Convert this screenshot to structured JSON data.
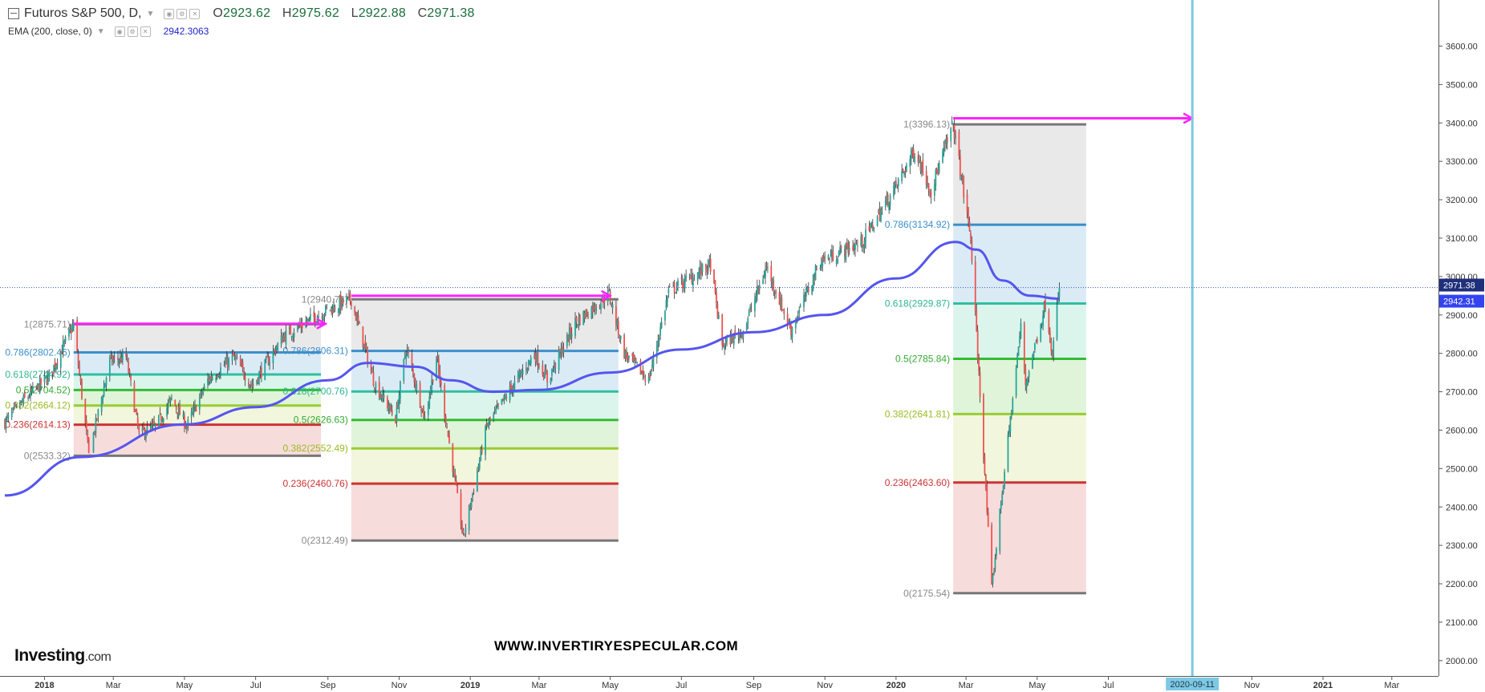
{
  "header": {
    "symbol": "Futuros S&P 500, D,",
    "ohlc": {
      "o_label": "O",
      "o": "2923.62",
      "h_label": "H",
      "h": "2975.62",
      "l_label": "L",
      "l": "2922.88",
      "c_label": "C",
      "c": "2971.38"
    },
    "ema_label": "EMA (200, close, 0)",
    "ema_value": "2942.3063"
  },
  "branding": {
    "logo_main": "Investing",
    "logo_domain": ".com",
    "watermark": "WWW.INVERTIRYESPECULAR.COM"
  },
  "colors": {
    "up": "#26a69a",
    "down": "#ef5350",
    "ema": "#5555ee",
    "arrow": "#ff22ff",
    "vline": "#7ec8e3",
    "fib_1": "#777777",
    "fib_786": "#3a8fcc",
    "fib_618": "#2fbfa0",
    "fib_5": "#33bb33",
    "fib_382": "#99cc33",
    "fib_236": "#cc3333",
    "fib_0": "#777777"
  },
  "chart_data": {
    "type": "candlestick",
    "instrument": "Futuros S&P 500",
    "interval": "D",
    "ylim": [
      1960,
      3720
    ],
    "y_ticks": [
      "2000.00",
      "2100.00",
      "2200.00",
      "2300.00",
      "2400.00",
      "2500.00",
      "2600.00",
      "2700.00",
      "2800.00",
      "2900.00",
      "3000.00",
      "3100.00",
      "3200.00",
      "3300.00",
      "3400.00",
      "3500.00",
      "3600.00"
    ],
    "y_tick_values": [
      2000,
      2100,
      2200,
      2300,
      2400,
      2500,
      2600,
      2700,
      2800,
      2900,
      3000,
      3100,
      3200,
      3300,
      3400,
      3500,
      3600
    ],
    "x_ticks": [
      {
        "label": "2018",
        "date": "2018-01-01",
        "bold": true
      },
      {
        "label": "Mar",
        "date": "2018-03-01"
      },
      {
        "label": "May",
        "date": "2018-05-01"
      },
      {
        "label": "Jul",
        "date": "2018-07-01"
      },
      {
        "label": "Sep",
        "date": "2018-09-01"
      },
      {
        "label": "Nov",
        "date": "2018-11-01"
      },
      {
        "label": "2019",
        "date": "2019-01-01",
        "bold": true
      },
      {
        "label": "Mar",
        "date": "2019-03-01"
      },
      {
        "label": "May",
        "date": "2019-05-01"
      },
      {
        "label": "Jul",
        "date": "2019-07-01"
      },
      {
        "label": "Sep",
        "date": "2019-09-01"
      },
      {
        "label": "Nov",
        "date": "2019-11-01"
      },
      {
        "label": "2020",
        "date": "2020-01-01",
        "bold": true
      },
      {
        "label": "Mar",
        "date": "2020-03-01"
      },
      {
        "label": "May",
        "date": "2020-05-01"
      },
      {
        "label": "Jul",
        "date": "2020-07-01"
      },
      {
        "label": "Nov",
        "date": "2020-11-01"
      },
      {
        "label": "2021",
        "date": "2021-01-01",
        "bold": true
      },
      {
        "label": "Mar",
        "date": "2021-03-01"
      }
    ],
    "x_range": [
      "2017-11-28",
      "2021-04-10"
    ],
    "price_path": [
      [
        "2017-11-28",
        2620
      ],
      [
        "2017-12-15",
        2680
      ],
      [
        "2018-01-05",
        2740
      ],
      [
        "2018-01-26",
        2875
      ],
      [
        "2018-02-08",
        2535
      ],
      [
        "2018-02-26",
        2780
      ],
      [
        "2018-03-12",
        2790
      ],
      [
        "2018-03-23",
        2590
      ],
      [
        "2018-04-06",
        2610
      ],
      [
        "2018-04-20",
        2680
      ],
      [
        "2018-05-03",
        2610
      ],
      [
        "2018-05-21",
        2730
      ],
      [
        "2018-06-12",
        2790
      ],
      [
        "2018-06-28",
        2715
      ],
      [
        "2018-07-25",
        2845
      ],
      [
        "2018-08-29",
        2910
      ],
      [
        "2018-09-21",
        2940
      ],
      [
        "2018-10-11",
        2720
      ],
      [
        "2018-10-29",
        2630
      ],
      [
        "2018-11-07",
        2815
      ],
      [
        "2018-11-23",
        2630
      ],
      [
        "2018-12-03",
        2790
      ],
      [
        "2018-12-26",
        2320
      ],
      [
        "2019-01-15",
        2610
      ],
      [
        "2019-02-25",
        2800
      ],
      [
        "2019-03-08",
        2730
      ],
      [
        "2019-04-01",
        2880
      ],
      [
        "2019-04-30",
        2955
      ],
      [
        "2019-05-13",
        2800
      ],
      [
        "2019-06-03",
        2730
      ],
      [
        "2019-06-20",
        2960
      ],
      [
        "2019-07-26",
        3030
      ],
      [
        "2019-08-05",
        2820
      ],
      [
        "2019-08-23",
        2860
      ],
      [
        "2019-09-12",
        3025
      ],
      [
        "2019-10-03",
        2860
      ],
      [
        "2019-10-28",
        3040
      ],
      [
        "2019-12-03",
        3090
      ],
      [
        "2019-12-31",
        3230
      ],
      [
        "2020-01-17",
        3330
      ],
      [
        "2020-01-31",
        3225
      ],
      [
        "2020-02-19",
        3396
      ],
      [
        "2020-03-05",
        3100
      ],
      [
        "2020-03-23",
        2185
      ],
      [
        "2020-04-01",
        2440
      ],
      [
        "2020-04-17",
        2870
      ],
      [
        "2020-04-21",
        2720
      ],
      [
        "2020-05-08",
        2930
      ],
      [
        "2020-05-14",
        2800
      ],
      [
        "2020-05-20",
        2971
      ]
    ],
    "last_price": "2971.38",
    "last_price_value": 2971.38,
    "ema_200": {
      "name": "EMA (200, close, 0)",
      "last": "2942.31",
      "last_value": 2942.31,
      "points": [
        [
          "2017-11-28",
          2430
        ],
        [
          "2018-02-01",
          2530
        ],
        [
          "2018-05-01",
          2615
        ],
        [
          "2018-07-01",
          2660
        ],
        [
          "2018-09-01",
          2730
        ],
        [
          "2018-10-05",
          2775
        ],
        [
          "2018-11-15",
          2765
        ],
        [
          "2018-12-15",
          2730
        ],
        [
          "2019-01-20",
          2700
        ],
        [
          "2019-03-01",
          2705
        ],
        [
          "2019-05-01",
          2750
        ],
        [
          "2019-07-01",
          2810
        ],
        [
          "2019-09-01",
          2855
        ],
        [
          "2019-11-01",
          2900
        ],
        [
          "2020-01-01",
          2995
        ],
        [
          "2020-02-21",
          3090
        ],
        [
          "2020-03-10",
          3070
        ],
        [
          "2020-04-01",
          2990
        ],
        [
          "2020-04-25",
          2950
        ],
        [
          "2020-05-20",
          2942
        ]
      ]
    },
    "fibonacci": [
      {
        "start": "2018-01-26",
        "end": "2018-08-26",
        "levels": [
          {
            "ratio": "1",
            "value": 2875.71,
            "label": "1(2875.71)"
          },
          {
            "ratio": "0.786",
            "value": 2802.46,
            "label": "0.786(2802.46)"
          },
          {
            "ratio": "0.618",
            "value": 2744.92,
            "label": "0.618(2744.92)"
          },
          {
            "ratio": "0.5",
            "value": 2704.52,
            "label": "0.5(2704.52)"
          },
          {
            "ratio": "0.382",
            "value": 2664.12,
            "label": "0.382(2664.12)"
          },
          {
            "ratio": "0.236",
            "value": 2614.13,
            "label": "0.236(2614.13)"
          },
          {
            "ratio": "0",
            "value": 2533.32,
            "label": "0(2533.32)"
          }
        ]
      },
      {
        "start": "2018-09-21",
        "end": "2019-05-08",
        "levels": [
          {
            "ratio": "1",
            "value": 2940.73,
            "label": "1(2940.73)"
          },
          {
            "ratio": "0.786",
            "value": 2806.31,
            "label": "0.786(2806.31)"
          },
          {
            "ratio": "0.618",
            "value": 2700.76,
            "label": "0.618(2700.76)"
          },
          {
            "ratio": "0.5",
            "value": 2626.63,
            "label": "0.5(2626.63)"
          },
          {
            "ratio": "0.382",
            "value": 2552.49,
            "label": "0.382(2552.49)"
          },
          {
            "ratio": "0.236",
            "value": 2460.76,
            "label": "0.236(2460.76)"
          },
          {
            "ratio": "0",
            "value": 2312.49,
            "label": "0(2312.49)"
          }
        ]
      },
      {
        "start": "2020-02-19",
        "end": "2020-06-12",
        "levels": [
          {
            "ratio": "1",
            "value": 3396.13,
            "label": "1(3396.13)"
          },
          {
            "ratio": "0.786",
            "value": 3134.92,
            "label": "0.786(3134.92)"
          },
          {
            "ratio": "0.618",
            "value": 2929.87,
            "label": "0.618(2929.87)"
          },
          {
            "ratio": "0.5",
            "value": 2785.84,
            "label": "0.5(2785.84)"
          },
          {
            "ratio": "0.382",
            "value": 2641.81,
            "label": "0.382(2641.81)"
          },
          {
            "ratio": "0.236",
            "value": 2463.6,
            "label": "0.236(2463.60)"
          },
          {
            "ratio": "0",
            "value": 2175.54,
            "label": "0(2175.54)"
          }
        ]
      }
    ],
    "arrows": [
      {
        "from": [
          "2018-01-26",
          2877
        ],
        "to": [
          "2018-08-30",
          2877
        ]
      },
      {
        "from": [
          "2018-09-21",
          2950
        ],
        "to": [
          "2019-05-01",
          2950
        ]
      },
      {
        "from": [
          "2020-02-19",
          3412
        ],
        "to": [
          "2020-09-11",
          3412
        ]
      }
    ],
    "vertical_line": {
      "date": "2020-09-11",
      "label": "2020-09-11"
    },
    "grid": false
  }
}
